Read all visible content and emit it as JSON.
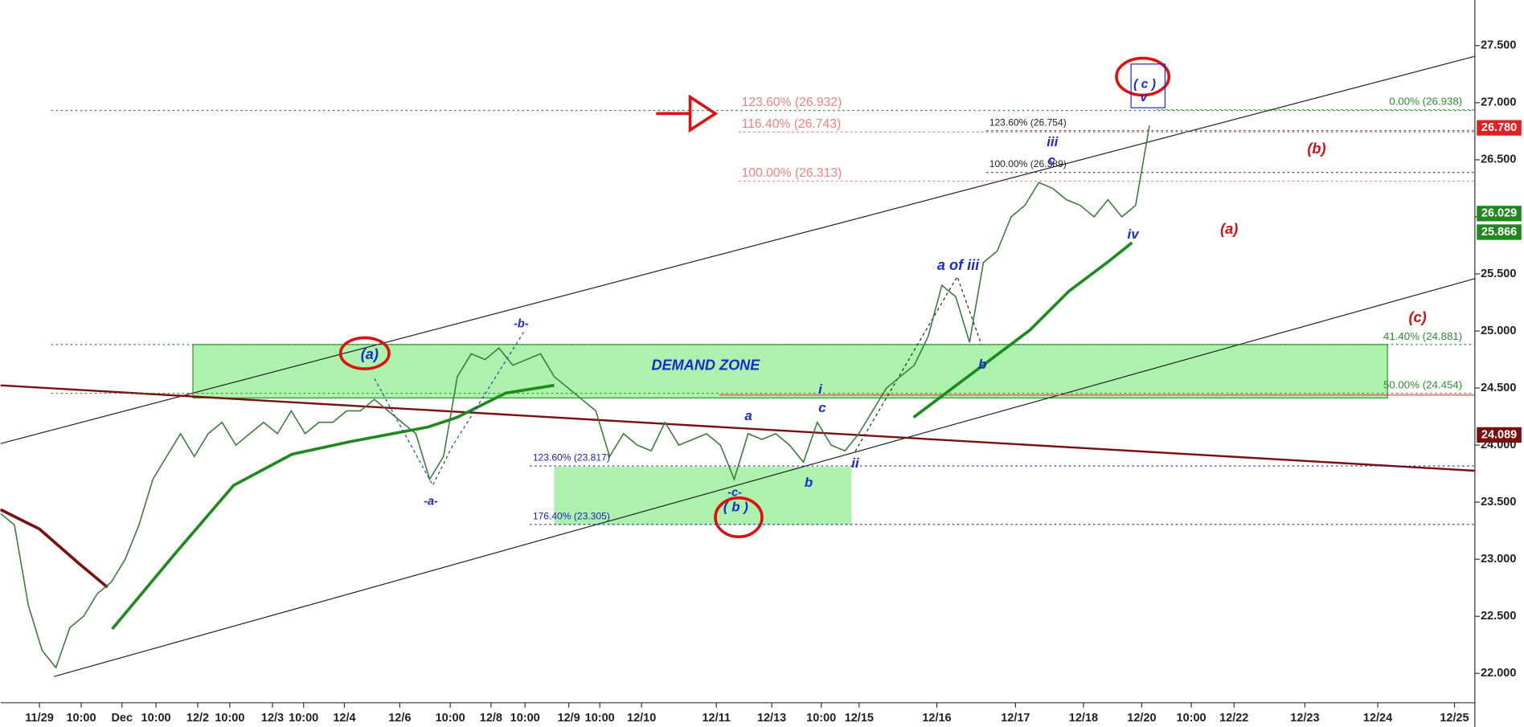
{
  "chart_data": {
    "type": "line",
    "color": "#3a7a3a",
    "values": [
      23.4,
      23.3,
      22.6,
      22.2,
      22.05,
      22.4,
      22.5,
      22.7,
      22.8,
      23.0,
      23.3,
      23.7,
      23.9,
      24.1,
      23.9,
      24.1,
      24.2,
      24.0,
      24.1,
      24.2,
      24.1,
      24.3,
      24.1,
      24.2,
      24.2,
      24.3,
      24.3,
      24.4,
      24.3,
      24.2,
      24.1,
      23.7,
      23.9,
      24.6,
      24.8,
      24.75,
      24.85,
      24.7,
      24.75,
      24.8,
      24.6,
      24.5,
      24.4,
      24.3,
      23.9,
      24.1,
      24.0,
      23.95,
      24.2,
      24.0,
      24.05,
      24.1,
      24.0,
      23.7,
      24.1,
      24.05,
      24.1,
      24.0,
      23.85,
      24.2,
      24.0,
      23.95,
      24.1,
      24.3,
      24.5,
      24.6,
      24.7,
      24.95,
      25.4,
      25.3,
      24.9,
      25.6,
      25.7,
      26.0,
      26.1,
      26.3,
      26.25,
      26.15,
      26.1,
      26.0,
      26.15,
      26.0,
      26.1,
      26.8
    ],
    "ylim": [
      21.53,
      27.9
    ],
    "yticks": [
      {
        "value": 22.0,
        "label": "22.000"
      },
      {
        "value": 22.5,
        "label": "22.500"
      },
      {
        "value": 23.0,
        "label": "23.000"
      },
      {
        "value": 23.5,
        "label": "23.500"
      },
      {
        "value": 24.0,
        "label": "24.000"
      },
      {
        "value": 24.5,
        "label": "24.500"
      },
      {
        "value": 25.0,
        "label": "25.000"
      },
      {
        "value": 25.5,
        "label": "25.500"
      },
      {
        "value": 26.0,
        "label": "26.000"
      },
      {
        "value": 26.5,
        "label": "26.500"
      },
      {
        "value": 27.0,
        "label": "27.000"
      },
      {
        "value": 27.5,
        "label": "27.500"
      }
    ],
    "x_labels": [
      "11/29",
      "10:00",
      "Dec",
      "10:00",
      "12/2",
      "10:00",
      "12/3",
      "10:00",
      "12/4",
      "12/6",
      "10:00",
      "12/8",
      "10:00",
      "12/9",
      "10:00",
      "12/10",
      "12/11",
      "12/13",
      "10:00",
      "12/15",
      "12/16",
      "12/17",
      "12/18",
      "12/20",
      "10:00",
      "12/22",
      "12/23",
      "12/24",
      "12/25"
    ],
    "fib_levels": [
      {
        "value": 26.932,
        "label": "123.60% (26.932)"
      },
      {
        "value": 26.743,
        "label": "116.40% (26.743)"
      },
      {
        "value": 26.313,
        "label": "100.00% (26.313)"
      },
      {
        "value": 26.754,
        "label": "123.60% (26.754)"
      },
      {
        "value": 26.389,
        "label": "100.00% (26.389)"
      },
      {
        "value": 26.938,
        "label": "0.00% (26.938)"
      },
      {
        "value": 24.881,
        "label": "41.40% (24.881)"
      },
      {
        "value": 24.454,
        "label": "50.00% (24.454)"
      },
      {
        "value": 23.817,
        "label": "123.60% (23.817)"
      },
      {
        "value": 23.305,
        "label": "176.40% (23.305)"
      }
    ],
    "price_tags": [
      {
        "value": 26.78,
        "label": "26.780"
      },
      {
        "value": 26.029,
        "label": "26.029"
      },
      {
        "value": 25.866,
        "label": "25.866"
      },
      {
        "value": 24.089,
        "label": "24.089"
      }
    ],
    "zone_label": "DEMAND ZONE",
    "annotations": [
      "(a)",
      "-b-",
      "-a-",
      "-c-",
      "( b )",
      "a",
      "b",
      "c",
      "i",
      "ii",
      "iii",
      "c",
      "a of iii",
      "b",
      "iv",
      "v",
      "( c )",
      "(a)",
      "(b)",
      "(c)"
    ]
  }
}
